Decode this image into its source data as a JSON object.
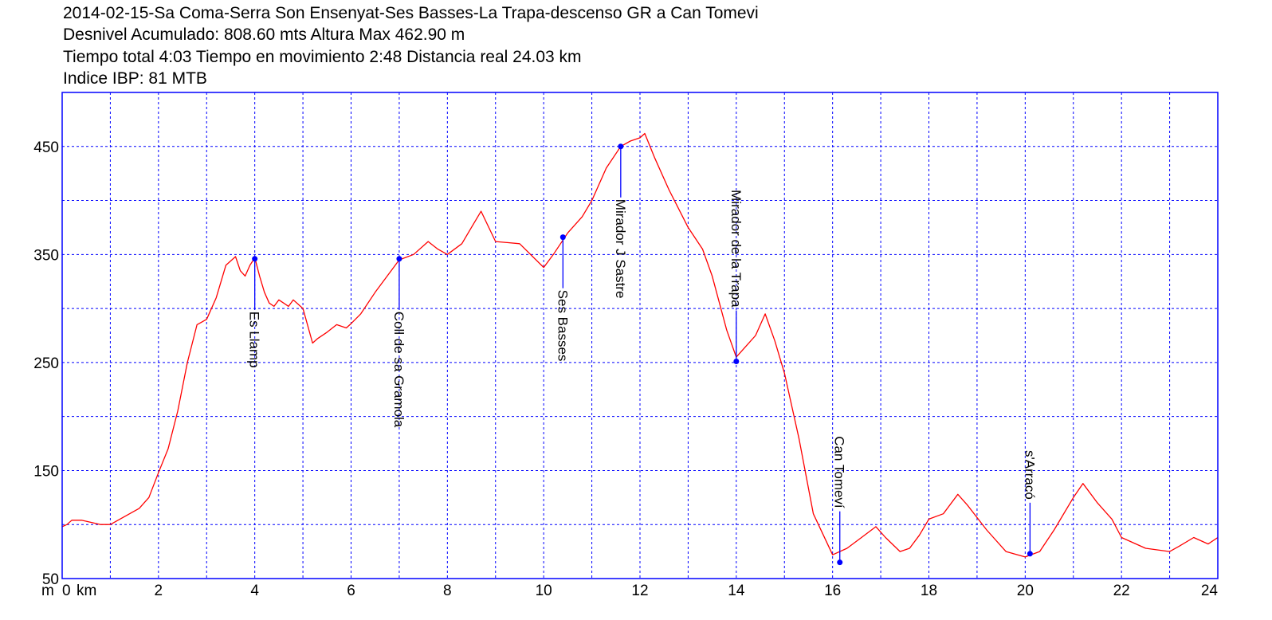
{
  "header": {
    "line1": "2014-02-15-Sa Coma-Serra Son Ensenyat-Ses Basses-La Trapa-descenso GR a Can Tomevi",
    "line2": "Desnivel Acumulado: 808.60 mts  Altura Max 462.90 m",
    "line3": "Tiempo total 4:03 Tiempo en movimiento 2:48 Distancia real 24.03 km",
    "line4": "Indice IBP: 81 MTB"
  },
  "chart_data": {
    "type": "line",
    "xlabel": "km",
    "ylabel": "m",
    "xlim": [
      0,
      24
    ],
    "ylim": [
      50,
      500
    ],
    "x_ticks": [
      0,
      2,
      4,
      6,
      8,
      10,
      12,
      14,
      16,
      18,
      20,
      22,
      24
    ],
    "x_tick_labels": [
      "0",
      "2",
      "4",
      "6",
      "8",
      "10",
      "12",
      "14",
      "16",
      "18",
      "20",
      "22",
      "24"
    ],
    "y_ticks": [
      50,
      150,
      250,
      350,
      450
    ],
    "x_grid": [
      1,
      2,
      3,
      4,
      5,
      6,
      7,
      8,
      9,
      10,
      11,
      12,
      13,
      14,
      15,
      16,
      17,
      18,
      19,
      20,
      21,
      22,
      23
    ],
    "y_grid": [
      100,
      150,
      200,
      250,
      300,
      350,
      400,
      450
    ],
    "grid": true,
    "colors": {
      "profile": "#ff0000",
      "grid": "#0000ff",
      "frame": "#0000ff",
      "waypoint": "#0000ff"
    },
    "series": [
      {
        "x": [
          0,
          0.1,
          0.2,
          0.4,
          0.6,
          0.8,
          1.0,
          1.2,
          1.4,
          1.6,
          1.8,
          2.0,
          2.2,
          2.4,
          2.6,
          2.8,
          3.0,
          3.2,
          3.4,
          3.6,
          3.7,
          3.8,
          3.9,
          4.0,
          4.1,
          4.2,
          4.3,
          4.4,
          4.5,
          4.6,
          4.7,
          4.8,
          5.0,
          5.2,
          5.3,
          5.5,
          5.7,
          5.9,
          6.0,
          6.2,
          6.5,
          7.0,
          7.3,
          7.6,
          7.8,
          8.0,
          8.3,
          8.5,
          8.7,
          9.0,
          9.5,
          10.0,
          10.2,
          10.5,
          10.8,
          11.0,
          11.3,
          11.6,
          11.8,
          12.0,
          12.1,
          12.3,
          12.6,
          13.0,
          13.3,
          13.5,
          13.8,
          14.0,
          14.2,
          14.4,
          14.6,
          14.8,
          15.0,
          15.3,
          15.6,
          16.0,
          16.3,
          16.6,
          16.9,
          17.1,
          17.4,
          17.6,
          17.8,
          18.0,
          18.3,
          18.6,
          18.8,
          19.2,
          19.6,
          20.0,
          20.3,
          20.6,
          21.0,
          21.2,
          21.5,
          21.8,
          22.0,
          22.5,
          23.0,
          23.2,
          23.5,
          23.8,
          24.0
        ],
        "y": [
          98,
          100,
          104,
          104,
          102,
          100,
          100,
          105,
          110,
          115,
          125,
          148,
          170,
          205,
          250,
          285,
          290,
          310,
          340,
          348,
          335,
          330,
          340,
          347,
          330,
          315,
          305,
          302,
          308,
          305,
          302,
          308,
          300,
          268,
          272,
          278,
          285,
          282,
          286,
          295,
          315,
          345,
          350,
          362,
          355,
          350,
          360,
          375,
          390,
          362,
          360,
          338,
          350,
          370,
          385,
          400,
          430,
          450,
          455,
          458,
          462,
          440,
          410,
          375,
          355,
          330,
          280,
          255,
          265,
          275,
          295,
          270,
          240,
          180,
          110,
          72,
          78,
          88,
          98,
          88,
          75,
          78,
          90,
          105,
          110,
          128,
          118,
          95,
          75,
          70,
          75,
          95,
          125,
          138,
          120,
          105,
          88,
          78,
          75,
          80,
          88,
          82,
          88
        ]
      }
    ],
    "waypoints": [
      {
        "name": "Es Llamp",
        "x": 4.0,
        "y": 346
      },
      {
        "name": "Coll de sa Gramola",
        "x": 7.0,
        "y": 346
      },
      {
        "name": "Ses Basses",
        "x": 10.4,
        "y": 366
      },
      {
        "name": "Mirador J Sastre",
        "x": 11.6,
        "y": 450
      },
      {
        "name": "Mirador de la Trapa",
        "x": 14.0,
        "y": 251
      },
      {
        "name": "Can Tomeví",
        "x": 16.15,
        "y": 65
      },
      {
        "name": "s'Arracó",
        "x": 20.1,
        "y": 73
      }
    ]
  }
}
